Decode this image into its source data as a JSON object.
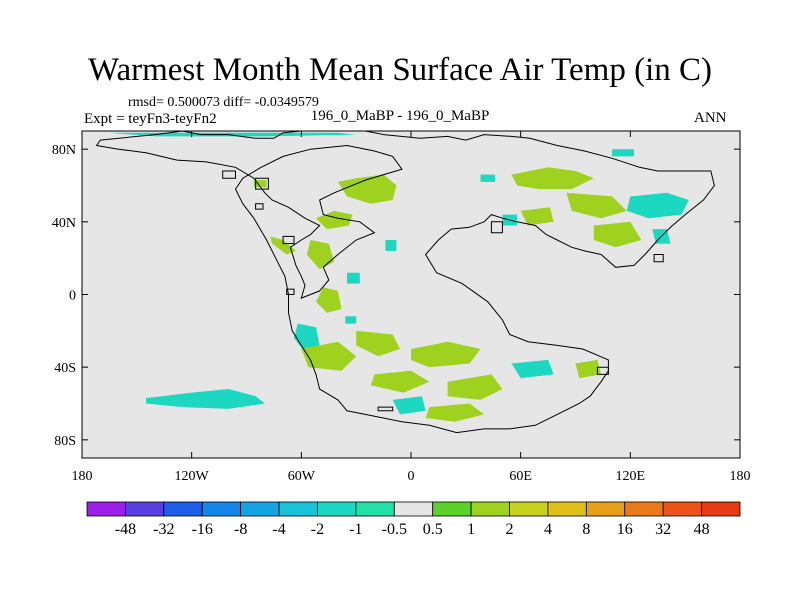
{
  "chart_data": {
    "type": "heatmap",
    "title": "Warmest Month Mean Surface Air Temp (in C)",
    "stats": "rmsd= 0.500073 diff= -0.0349579",
    "left_label": "Expt = teyFn3-teyFn2",
    "center_label": "196_0_MaBP - 196_0_MaBP",
    "right_label": "ANN",
    "x_ticks": [
      {
        "value": -180,
        "label": "180"
      },
      {
        "value": -120,
        "label": "120W"
      },
      {
        "value": -60,
        "label": "60W"
      },
      {
        "value": 0,
        "label": "0"
      },
      {
        "value": 60,
        "label": "60E"
      },
      {
        "value": 120,
        "label": "120E"
      },
      {
        "value": 180,
        "label": "180"
      }
    ],
    "y_ticks": [
      {
        "value": 80,
        "label": "80N"
      },
      {
        "value": 40,
        "label": "40N"
      },
      {
        "value": 0,
        "label": "0"
      },
      {
        "value": -40,
        "label": "40S"
      },
      {
        "value": -80,
        "label": "80S"
      }
    ],
    "xlim": [
      -180,
      180
    ],
    "ylim": [
      -90,
      90
    ],
    "colorbar": {
      "levels": [
        "-48",
        "-32",
        "-16",
        "-8",
        "-4",
        "-2",
        "-1",
        "-0.5",
        "0.5",
        "1",
        "2",
        "4",
        "8",
        "16",
        "32",
        "48"
      ],
      "colors": [
        "#9b1fe8",
        "#5a3fe0",
        "#1f5ee6",
        "#1486e6",
        "#16a3e4",
        "#19c2d8",
        "#1cd8c0",
        "#22e0a8",
        "#e6e6e6",
        "#5ad22a",
        "#9ed21e",
        "#c8d21e",
        "#e0c11c",
        "#e6a01a",
        "#ea7a18",
        "#ea5516",
        "#e63a12"
      ]
    },
    "coastline": [
      [
        -140,
        88
      ],
      [
        -125,
        90
      ],
      [
        -115,
        88
      ],
      [
        -100,
        88
      ],
      [
        -85,
        86
      ],
      [
        -75,
        86
      ],
      [
        -70,
        89
      ],
      [
        -60,
        90
      ],
      [
        -40,
        90
      ],
      [
        -25,
        90
      ],
      [
        -15,
        88
      ],
      [
        5,
        86
      ],
      [
        20,
        87
      ],
      [
        30,
        85
      ],
      [
        40,
        88
      ],
      [
        55,
        87
      ],
      [
        65,
        86
      ],
      [
        80,
        82
      ],
      [
        95,
        79
      ],
      [
        110,
        75
      ],
      [
        125,
        70
      ],
      [
        135,
        68
      ],
      [
        150,
        68
      ],
      [
        164,
        68
      ],
      [
        166,
        60
      ],
      [
        160,
        52
      ],
      [
        150,
        44
      ],
      [
        142,
        37
      ],
      [
        135,
        30
      ],
      [
        128,
        22
      ],
      [
        122,
        16
      ],
      [
        112,
        15
      ],
      [
        104,
        22
      ],
      [
        95,
        24
      ],
      [
        88,
        26
      ],
      [
        80,
        30
      ],
      [
        74,
        33
      ],
      [
        68,
        38
      ],
      [
        58,
        40
      ],
      [
        50,
        42
      ],
      [
        44,
        44
      ],
      [
        40,
        40
      ],
      [
        32,
        37
      ],
      [
        22,
        36
      ],
      [
        15,
        30
      ],
      [
        8,
        22
      ],
      [
        14,
        12
      ],
      [
        28,
        6
      ],
      [
        42,
        -4
      ],
      [
        50,
        -14
      ],
      [
        54,
        -22
      ],
      [
        64,
        -26
      ],
      [
        80,
        -28
      ],
      [
        94,
        -30
      ],
      [
        108,
        -36
      ],
      [
        108,
        -42
      ],
      [
        104,
        -48
      ],
      [
        98,
        -56
      ],
      [
        92,
        -60
      ],
      [
        80,
        -66
      ],
      [
        68,
        -72
      ],
      [
        54,
        -74
      ],
      [
        40,
        -74
      ],
      [
        25,
        -76
      ],
      [
        10,
        -72
      ],
      [
        -5,
        -70
      ],
      [
        -25,
        -66
      ],
      [
        -35,
        -64
      ],
      [
        -40,
        -58
      ],
      [
        -50,
        -52
      ],
      [
        -52,
        -44
      ],
      [
        -55,
        -36
      ],
      [
        -60,
        -28
      ],
      [
        -65,
        -20
      ],
      [
        -67,
        -10
      ],
      [
        -67,
        0
      ],
      [
        -69,
        10
      ],
      [
        -74,
        20
      ],
      [
        -79,
        30
      ],
      [
        -86,
        42
      ],
      [
        -92,
        50
      ],
      [
        -96,
        58
      ],
      [
        -92,
        64
      ],
      [
        -82,
        70
      ],
      [
        -70,
        76
      ],
      [
        -55,
        80
      ],
      [
        -35,
        82
      ],
      [
        -20,
        79
      ],
      [
        -10,
        76
      ],
      [
        -5,
        69
      ],
      [
        -25,
        63
      ],
      [
        -42,
        56
      ],
      [
        -50,
        52
      ],
      [
        -48,
        44
      ],
      [
        -40,
        42
      ],
      [
        -28,
        40
      ],
      [
        -20,
        34
      ],
      [
        -30,
        30
      ],
      [
        -40,
        22
      ],
      [
        -48,
        15
      ],
      [
        -45,
        8
      ],
      [
        -50,
        2
      ],
      [
        -60,
        -2
      ],
      [
        -58,
        5
      ],
      [
        -60,
        10
      ],
      [
        -63,
        16
      ],
      [
        -66,
        26
      ],
      [
        -60,
        30
      ],
      [
        -55,
        33
      ],
      [
        -50,
        38
      ],
      [
        -58,
        42
      ],
      [
        -67,
        48
      ],
      [
        -76,
        52
      ],
      [
        -80,
        56
      ],
      [
        -86,
        64
      ],
      [
        -96,
        70
      ],
      [
        -112,
        73
      ],
      [
        -128,
        74
      ],
      [
        -145,
        78
      ],
      [
        -160,
        80
      ],
      [
        -172,
        82
      ],
      [
        -170,
        85
      ],
      [
        -140,
        88
      ]
    ],
    "islands": [
      [
        [
          -103,
          68
        ],
        [
          -96,
          68
        ],
        [
          -96,
          64
        ],
        [
          -103,
          64
        ]
      ],
      [
        [
          -85,
          64
        ],
        [
          -78,
          64
        ],
        [
          -78,
          58
        ],
        [
          -85,
          58
        ]
      ],
      [
        [
          -85,
          50
        ],
        [
          -81,
          50
        ],
        [
          -81,
          47
        ],
        [
          -85,
          47
        ]
      ],
      [
        [
          -70,
          32
        ],
        [
          -64,
          32
        ],
        [
          -64,
          28
        ],
        [
          -70,
          28
        ]
      ],
      [
        [
          -68,
          3
        ],
        [
          -64,
          3
        ],
        [
          -64,
          0
        ],
        [
          -68,
          0
        ]
      ],
      [
        [
          44,
          40
        ],
        [
          50,
          40
        ],
        [
          50,
          34
        ],
        [
          44,
          34
        ]
      ],
      [
        [
          102,
          -40
        ],
        [
          108,
          -40
        ],
        [
          108,
          -44
        ],
        [
          102,
          -44
        ]
      ],
      [
        [
          -18,
          -62
        ],
        [
          -10,
          -62
        ],
        [
          -10,
          -64
        ],
        [
          -18,
          -64
        ]
      ],
      [
        [
          133,
          22
        ],
        [
          138,
          22
        ],
        [
          138,
          18
        ],
        [
          133,
          18
        ]
      ]
    ],
    "data_patches": [
      {
        "class": "cool",
        "pts": [
          [
            -145,
            -57
          ],
          [
            -120,
            -54
          ],
          [
            -100,
            -52
          ],
          [
            -85,
            -56
          ],
          [
            -80,
            -60
          ],
          [
            -100,
            -63
          ],
          [
            -125,
            -62
          ],
          [
            -145,
            -60
          ]
        ]
      },
      {
        "class": "cool",
        "pts": [
          [
            -165,
            89
          ],
          [
            -100,
            89
          ],
          [
            -40,
            89
          ],
          [
            -30,
            88
          ],
          [
            -80,
            87
          ],
          [
            -140,
            87
          ]
        ]
      },
      {
        "class": "warm",
        "pts": [
          [
            -40,
            62
          ],
          [
            -30,
            64
          ],
          [
            -15,
            66
          ],
          [
            -8,
            60
          ],
          [
            -10,
            52
          ],
          [
            -22,
            50
          ],
          [
            -35,
            54
          ]
        ]
      },
      {
        "class": "warm",
        "pts": [
          [
            -52,
            42
          ],
          [
            -42,
            46
          ],
          [
            -32,
            44
          ],
          [
            -34,
            38
          ],
          [
            -46,
            36
          ]
        ]
      },
      {
        "class": "warm",
        "pts": [
          [
            -55,
            30
          ],
          [
            -45,
            28
          ],
          [
            -42,
            18
          ],
          [
            -50,
            14
          ],
          [
            -57,
            22
          ]
        ]
      },
      {
        "class": "warm",
        "pts": [
          [
            -48,
            4
          ],
          [
            -40,
            2
          ],
          [
            -38,
            -8
          ],
          [
            -46,
            -10
          ],
          [
            -52,
            -4
          ]
        ]
      },
      {
        "class": "cool",
        "pts": [
          [
            -62,
            -16
          ],
          [
            -52,
            -18
          ],
          [
            -50,
            -28
          ],
          [
            -58,
            -32
          ],
          [
            -64,
            -24
          ]
        ]
      },
      {
        "class": "warm",
        "pts": [
          [
            -60,
            -30
          ],
          [
            -40,
            -26
          ],
          [
            -30,
            -34
          ],
          [
            -38,
            -42
          ],
          [
            -56,
            -40
          ]
        ]
      },
      {
        "class": "warm",
        "pts": [
          [
            -30,
            -20
          ],
          [
            -10,
            -22
          ],
          [
            -6,
            -30
          ],
          [
            -18,
            -34
          ],
          [
            -30,
            -28
          ]
        ]
      },
      {
        "class": "warm",
        "pts": [
          [
            0,
            -30
          ],
          [
            20,
            -26
          ],
          [
            38,
            -30
          ],
          [
            32,
            -38
          ],
          [
            10,
            -40
          ],
          [
            0,
            -36
          ]
        ]
      },
      {
        "class": "warm",
        "pts": [
          [
            -20,
            -44
          ],
          [
            0,
            -42
          ],
          [
            10,
            -48
          ],
          [
            -4,
            -54
          ],
          [
            -22,
            -50
          ]
        ]
      },
      {
        "class": "warm",
        "pts": [
          [
            20,
            -48
          ],
          [
            44,
            -44
          ],
          [
            50,
            -52
          ],
          [
            38,
            -58
          ],
          [
            20,
            -56
          ]
        ]
      },
      {
        "class": "warm",
        "pts": [
          [
            10,
            -62
          ],
          [
            32,
            -60
          ],
          [
            40,
            -66
          ],
          [
            24,
            -70
          ],
          [
            8,
            -68
          ]
        ]
      },
      {
        "class": "cool",
        "pts": [
          [
            -10,
            -58
          ],
          [
            6,
            -56
          ],
          [
            8,
            -64
          ],
          [
            -6,
            -66
          ]
        ]
      },
      {
        "class": "cool",
        "pts": [
          [
            55,
            -38
          ],
          [
            75,
            -36
          ],
          [
            78,
            -44
          ],
          [
            60,
            -46
          ]
        ]
      },
      {
        "class": "warm",
        "pts": [
          [
            90,
            -38
          ],
          [
            102,
            -36
          ],
          [
            104,
            -44
          ],
          [
            92,
            -46
          ]
        ]
      },
      {
        "class": "warm",
        "pts": [
          [
            55,
            66
          ],
          [
            75,
            70
          ],
          [
            90,
            68
          ],
          [
            100,
            64
          ],
          [
            88,
            58
          ],
          [
            70,
            58
          ],
          [
            58,
            60
          ]
        ]
      },
      {
        "class": "warm",
        "pts": [
          [
            85,
            56
          ],
          [
            110,
            54
          ],
          [
            118,
            46
          ],
          [
            104,
            42
          ],
          [
            88,
            46
          ]
        ]
      },
      {
        "class": "cool",
        "pts": [
          [
            120,
            54
          ],
          [
            140,
            56
          ],
          [
            152,
            52
          ],
          [
            148,
            44
          ],
          [
            130,
            42
          ],
          [
            118,
            46
          ]
        ]
      },
      {
        "class": "warm",
        "pts": [
          [
            100,
            38
          ],
          [
            120,
            40
          ],
          [
            126,
            30
          ],
          [
            112,
            26
          ],
          [
            100,
            30
          ]
        ]
      },
      {
        "class": "cool",
        "pts": [
          [
            132,
            36
          ],
          [
            140,
            36
          ],
          [
            142,
            28
          ],
          [
            134,
            28
          ]
        ]
      },
      {
        "class": "warm",
        "pts": [
          [
            60,
            46
          ],
          [
            76,
            48
          ],
          [
            78,
            40
          ],
          [
            64,
            38
          ]
        ]
      },
      {
        "class": "cool",
        "pts": [
          [
            50,
            44
          ],
          [
            58,
            44
          ],
          [
            58,
            38
          ],
          [
            50,
            38
          ]
        ]
      },
      {
        "class": "warm",
        "pts": [
          [
            -77,
            32
          ],
          [
            -70,
            30
          ],
          [
            -63,
            24
          ],
          [
            -68,
            22
          ],
          [
            -76,
            28
          ]
        ]
      },
      {
        "class": "warm",
        "pts": [
          [
            -86,
            63
          ],
          [
            -79,
            63
          ],
          [
            -79,
            59
          ],
          [
            -86,
            59
          ]
        ]
      },
      {
        "class": "cool",
        "pts": [
          [
            -14,
            30
          ],
          [
            -8,
            30
          ],
          [
            -8,
            24
          ],
          [
            -14,
            24
          ]
        ]
      },
      {
        "class": "cool",
        "pts": [
          [
            38,
            66
          ],
          [
            46,
            66
          ],
          [
            46,
            62
          ],
          [
            38,
            62
          ]
        ]
      },
      {
        "class": "cool",
        "pts": [
          [
            110,
            80
          ],
          [
            122,
            80
          ],
          [
            122,
            76
          ],
          [
            110,
            76
          ]
        ]
      },
      {
        "class": "cool",
        "pts": [
          [
            -35,
            12
          ],
          [
            -28,
            12
          ],
          [
            -28,
            6
          ],
          [
            -35,
            6
          ]
        ]
      },
      {
        "class": "cool",
        "pts": [
          [
            -36,
            -12
          ],
          [
            -30,
            -12
          ],
          [
            -30,
            -16
          ],
          [
            -36,
            -16
          ]
        ]
      }
    ]
  }
}
